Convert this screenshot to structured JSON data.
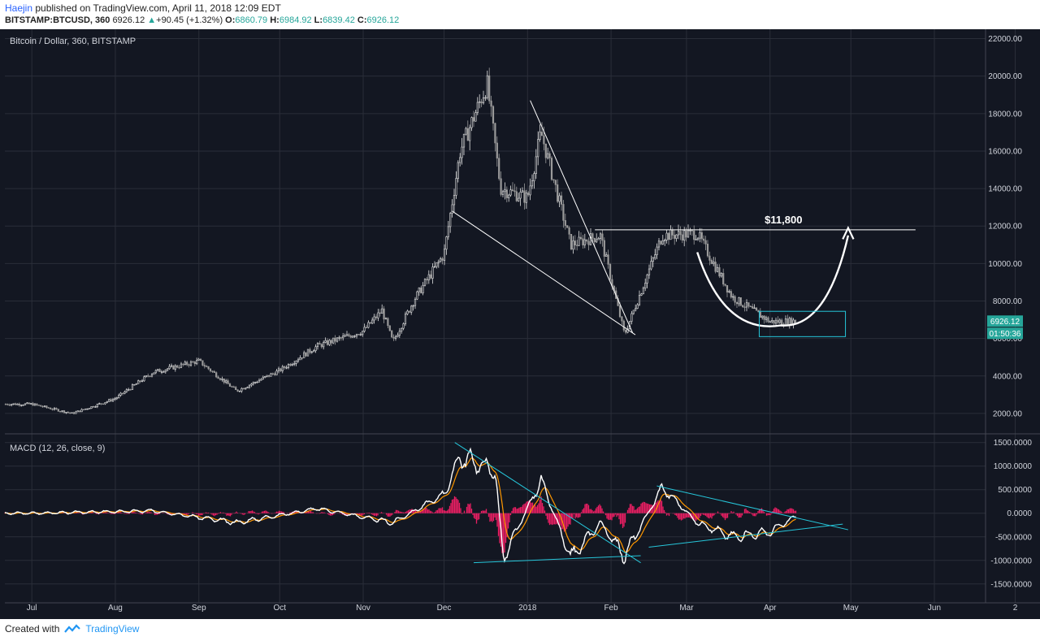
{
  "header": {
    "author": "Haejin",
    "published_text": " published on TradingView.com, April 11, 2018 12:09 EDT",
    "symbol": "BITSTAMP:BTCUSD, 360",
    "last": "6926.12",
    "change": "+90.45 (+1.32%)",
    "open_label": "O:",
    "open": "6860.79",
    "high_label": "H:",
    "high": "6984.92",
    "low_label": "L:",
    "low": "6839.42",
    "close_label": "C:",
    "close": "6926.12"
  },
  "footer": {
    "created_with": "Created with",
    "brand": "TradingView"
  },
  "colors": {
    "bg": "#131722",
    "grid": "#2a2e39",
    "up": "#e0e0e0",
    "down": "#9a9a9a",
    "line": "#ffffff",
    "cyan": "#26c6da",
    "hist": "#e91e63",
    "signal": "#ff9800",
    "price_badge": "#26a69a"
  },
  "chart_data": [
    {
      "type": "candlestick",
      "title": "Bitcoin / Dollar, 360, BITSTAMP",
      "xlabel": "",
      "ylabel": "",
      "x_ticks": [
        "Jul",
        "Aug",
        "Sep",
        "Oct",
        "Nov",
        "Dec",
        "2018",
        "Feb",
        "Mar",
        "Apr",
        "May",
        "Jun",
        "2"
      ],
      "y_ticks": [
        "2000.00",
        "4000.00",
        "6000.00",
        "8000.00",
        "10000.00",
        "12000.00",
        "14000.00",
        "16000.00",
        "18000.00",
        "20000.00",
        "22000.00"
      ],
      "ylim": [
        1000,
        22500
      ],
      "grid": true,
      "approx_closes": {
        "x": [
          "2017-07-01",
          "2017-07-16",
          "2017-08-01",
          "2017-08-15",
          "2017-09-01",
          "2017-09-15",
          "2017-10-01",
          "2017-10-15",
          "2017-11-01",
          "2017-11-08",
          "2017-11-12",
          "2017-11-20",
          "2017-12-01",
          "2017-12-07",
          "2017-12-17",
          "2017-12-22",
          "2018-01-01",
          "2018-01-06",
          "2018-01-17",
          "2018-01-28",
          "2018-02-06",
          "2018-02-20",
          "2018-03-05",
          "2018-03-18",
          "2018-04-01",
          "2018-04-11"
        ],
        "y": [
          2500,
          2000,
          2800,
          4200,
          4800,
          3200,
          4300,
          5600,
          6400,
          7500,
          5800,
          8100,
          10500,
          16000,
          19600,
          14000,
          13500,
          17000,
          11000,
          11500,
          6200,
          11500,
          11600,
          8200,
          6900,
          6926.12
        ]
      },
      "current_price_label": "6926.12",
      "countdown_label": "01:50:36",
      "annotation": "$11,800",
      "annotation_level": 11800
    },
    {
      "type": "line",
      "title": "MACD (12, 26, close, 9)",
      "y_ticks": [
        "1500.0000",
        "1000.0000",
        "500.0000",
        "0.0000",
        "-500.0000",
        "-1000.0000",
        "-1500.0000"
      ],
      "ylim": [
        -1900,
        1650
      ],
      "grid": true,
      "series": [
        {
          "name": "MACD",
          "x": [
            "2017-07-01",
            "2017-08-15",
            "2017-09-15",
            "2017-10-15",
            "2017-11-12",
            "2017-12-01",
            "2017-12-07",
            "2017-12-20",
            "2017-12-23",
            "2018-01-06",
            "2018-01-17",
            "2018-01-28",
            "2018-02-06",
            "2018-02-20",
            "2018-03-05",
            "2018-03-18",
            "2018-04-01",
            "2018-04-11"
          ],
          "values": [
            0,
            50,
            -200,
            100,
            -200,
            400,
            1200,
            900,
            -950,
            700,
            -950,
            -200,
            -900,
            550,
            -200,
            -500,
            -400,
            -50
          ]
        }
      ]
    }
  ]
}
